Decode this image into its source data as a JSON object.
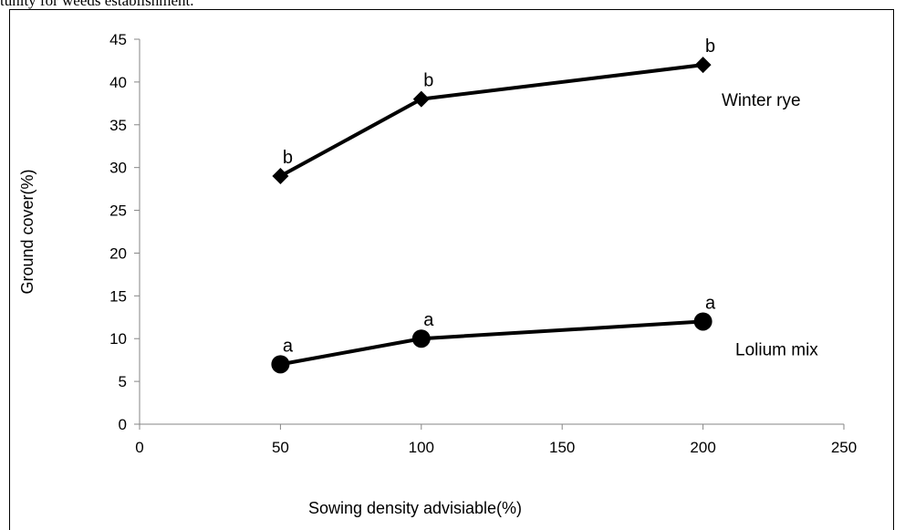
{
  "page": {
    "top_text": "tunity for weeds establishment."
  },
  "chart_data": {
    "type": "line",
    "title": "",
    "xlabel": "Sowing density  advisiable(%)",
    "ylabel": "Ground cover(%)",
    "xlim": [
      0,
      250
    ],
    "ylim": [
      0,
      45
    ],
    "xticks": [
      0,
      50,
      100,
      150,
      200,
      250
    ],
    "yticks": [
      0,
      5,
      10,
      15,
      20,
      25,
      30,
      35,
      40,
      45
    ],
    "grid": false,
    "legend": "none",
    "series": [
      {
        "name": "Winter rye",
        "marker": "diamond",
        "color": "#000000",
        "x": [
          50,
          100,
          200
        ],
        "y": [
          29,
          38,
          42
        ],
        "labels": [
          "b",
          "b",
          "b"
        ]
      },
      {
        "name": "Lolium mix",
        "marker": "circle",
        "color": "#000000",
        "x": [
          50,
          100,
          200
        ],
        "y": [
          7,
          10,
          12
        ],
        "labels": [
          "a",
          "a",
          "a"
        ]
      }
    ]
  }
}
